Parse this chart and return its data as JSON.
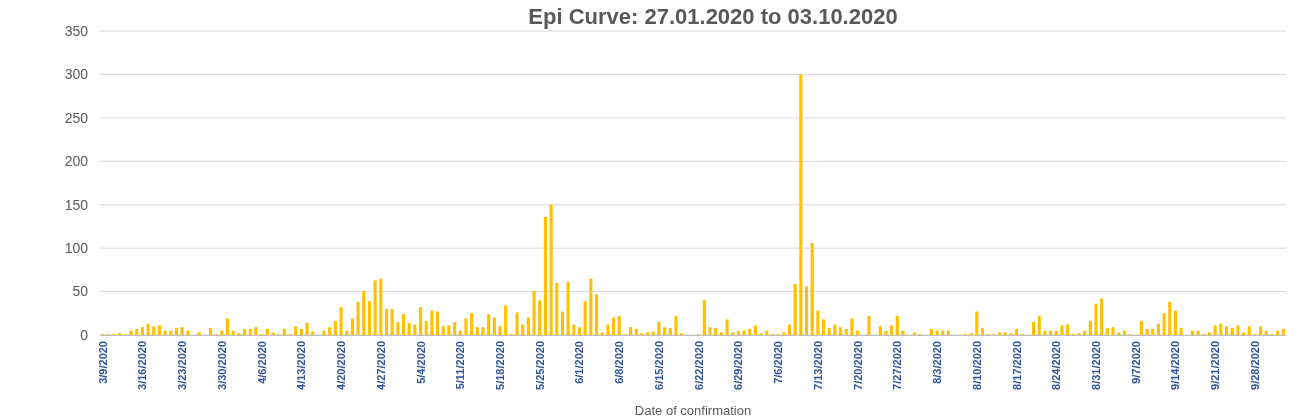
{
  "chart_data": {
    "type": "bar",
    "title": "Epi Curve: 27.01.2020 to  03.10.2020",
    "xlabel": "Date of confirmation",
    "color": "#ffc000",
    "ylim": [
      0,
      350
    ],
    "yticks": [
      0,
      50,
      100,
      150,
      200,
      250,
      300,
      350
    ],
    "grid": "y",
    "categories": [
      "3/9/2020",
      null,
      null,
      null,
      null,
      null,
      null,
      "3/16/2020",
      null,
      null,
      null,
      null,
      null,
      null,
      "3/23/2020",
      null,
      null,
      null,
      null,
      null,
      null,
      "3/30/2020",
      null,
      null,
      null,
      null,
      null,
      null,
      "4/6/2020",
      null,
      null,
      null,
      null,
      null,
      null,
      "4/13/2020",
      null,
      null,
      null,
      null,
      null,
      null,
      "4/20/2020",
      null,
      null,
      null,
      null,
      null,
      null,
      "4/27/2020",
      null,
      null,
      null,
      null,
      null,
      null,
      "5/4/2020",
      null,
      null,
      null,
      null,
      null,
      null,
      "5/11/2020",
      null,
      null,
      null,
      null,
      null,
      null,
      "5/18/2020",
      null,
      null,
      null,
      null,
      null,
      null,
      "5/25/2020",
      null,
      null,
      null,
      null,
      null,
      null,
      "6/1/2020",
      null,
      null,
      null,
      null,
      null,
      null,
      "6/8/2020",
      null,
      null,
      null,
      null,
      null,
      null,
      "6/15/2020",
      null,
      null,
      null,
      null,
      null,
      null,
      "6/22/2020",
      null,
      null,
      null,
      null,
      null,
      null,
      "6/29/2020",
      null,
      null,
      null,
      null,
      null,
      null,
      "7/6/2020",
      null,
      null,
      null,
      null,
      null,
      null,
      "7/13/2020",
      null,
      null,
      null,
      null,
      null,
      null,
      "7/20/2020",
      null,
      null,
      null,
      null,
      null,
      null,
      "7/27/2020",
      null,
      null,
      null,
      null,
      null,
      null,
      "8/3/2020",
      null,
      null,
      null,
      null,
      null,
      null,
      "8/10/2020",
      null,
      null,
      null,
      null,
      null,
      null,
      "8/17/2020",
      null,
      null,
      null,
      null,
      null,
      null,
      "8/24/2020",
      null,
      null,
      null,
      null,
      null,
      null,
      "8/31/2020",
      null,
      null,
      null,
      null,
      null,
      null,
      "9/7/2020",
      null,
      null,
      null,
      null,
      null,
      null,
      "9/14/2020",
      null,
      null,
      null,
      null,
      null,
      null,
      "9/21/2020",
      null,
      null,
      null,
      null,
      null,
      null,
      "9/28/2020",
      null,
      null,
      null,
      null,
      null
    ],
    "values": [
      1,
      1,
      1,
      2,
      1,
      5,
      7,
      9,
      13,
      10,
      11,
      5,
      5,
      8,
      9,
      5,
      0,
      3,
      0,
      8,
      1,
      5,
      19,
      5,
      2,
      7,
      7,
      9,
      1,
      7,
      3,
      1,
      7,
      1,
      10,
      7,
      14,
      4,
      0,
      5,
      9,
      16,
      32,
      5,
      19,
      38,
      51,
      39,
      63,
      65,
      30,
      30,
      15,
      24,
      14,
      12,
      32,
      16,
      28,
      27,
      10,
      11,
      15,
      5,
      19,
      25,
      9,
      9,
      24,
      20,
      10,
      34,
      1,
      26,
      12,
      20,
      51,
      40,
      136,
      150,
      60,
      27,
      61,
      12,
      9,
      39,
      65,
      47,
      3,
      12,
      20,
      22,
      1,
      9,
      7,
      2,
      3,
      4,
      15,
      9,
      8,
      22,
      2,
      0,
      0,
      1,
      40,
      9,
      8,
      3,
      18,
      3,
      5,
      5,
      7,
      11,
      2,
      5,
      1,
      1,
      3,
      12,
      59,
      300,
      56,
      106,
      28,
      18,
      8,
      12,
      9,
      7,
      19,
      5,
      0,
      22,
      0,
      10,
      5,
      11,
      22,
      5,
      0,
      3,
      1,
      0,
      7,
      5,
      5,
      5,
      0,
      0,
      1,
      2,
      27,
      8,
      1,
      1,
      3,
      3,
      2,
      7,
      1,
      0,
      15,
      22,
      5,
      5,
      5,
      11,
      12,
      1,
      2,
      5,
      16,
      36,
      42,
      8,
      9,
      3,
      5,
      1,
      0,
      16,
      7,
      7,
      13,
      25,
      38,
      28,
      8,
      0,
      5,
      5,
      1,
      3,
      11,
      13,
      10,
      8,
      11,
      3,
      10,
      1,
      10,
      5,
      1,
      5,
      7
    ]
  }
}
